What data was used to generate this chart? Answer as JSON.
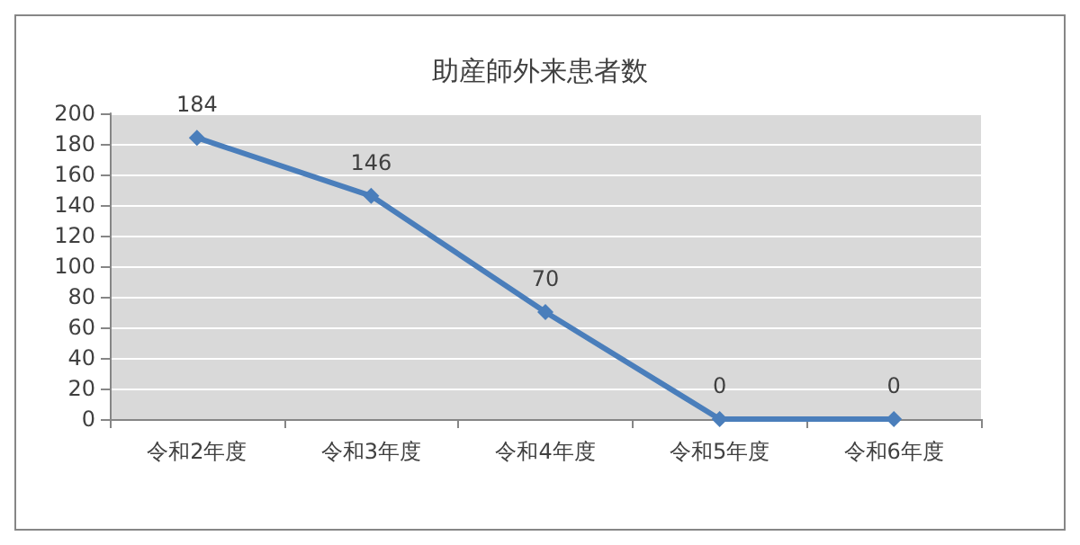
{
  "chart_data": {
    "type": "line",
    "title": "助産師外来患者数",
    "categories": [
      "令和2年度",
      "令和3年度",
      "令和4年度",
      "令和5年度",
      "令和6年度"
    ],
    "series": [
      {
        "color": "#4a7ebb",
        "values": [
          184,
          146,
          70,
          0,
          0
        ]
      }
    ],
    "ylim": [
      0,
      200
    ],
    "yticks": [
      0,
      20,
      40,
      60,
      80,
      100,
      120,
      140,
      160,
      180,
      200
    ],
    "grid": "y",
    "marker": "diamond",
    "line_style": "solid",
    "data_labels": true
  }
}
